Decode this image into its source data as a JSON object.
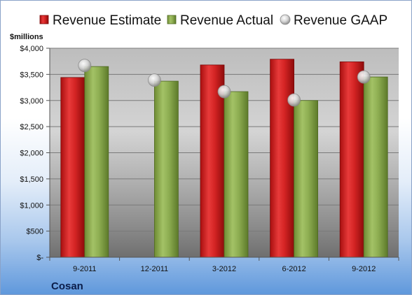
{
  "chart_data": {
    "type": "bar",
    "ylabel": "$millions",
    "company": "Cosan",
    "categories": [
      "9-2011",
      "12-2011",
      "3-2012",
      "6-2012",
      "9-2012"
    ],
    "series": [
      {
        "name": "Revenue Estimate",
        "kind": "bar",
        "color": "#cc1f1f",
        "values": [
          3440,
          null,
          3680,
          3790,
          3740
        ]
      },
      {
        "name": "Revenue Actual",
        "kind": "bar",
        "color": "#8aaa4a",
        "values": [
          3650,
          3370,
          3170,
          3000,
          3450
        ]
      },
      {
        "name": "Revenue GAAP",
        "kind": "marker",
        "color": "#c9c9c9",
        "values": [
          3670,
          3390,
          3170,
          3010,
          3450
        ]
      }
    ],
    "ylim": [
      0,
      4000
    ],
    "yticks": [
      0,
      500,
      1000,
      1500,
      2000,
      2500,
      3000,
      3500,
      4000
    ],
    "ytick_labels": [
      "$-",
      "$500",
      "$1,000",
      "$1,500",
      "$2,000",
      "$2,500",
      "$3,000",
      "$3,500",
      "$4,000"
    ],
    "grid": true,
    "legend_position": "top"
  }
}
